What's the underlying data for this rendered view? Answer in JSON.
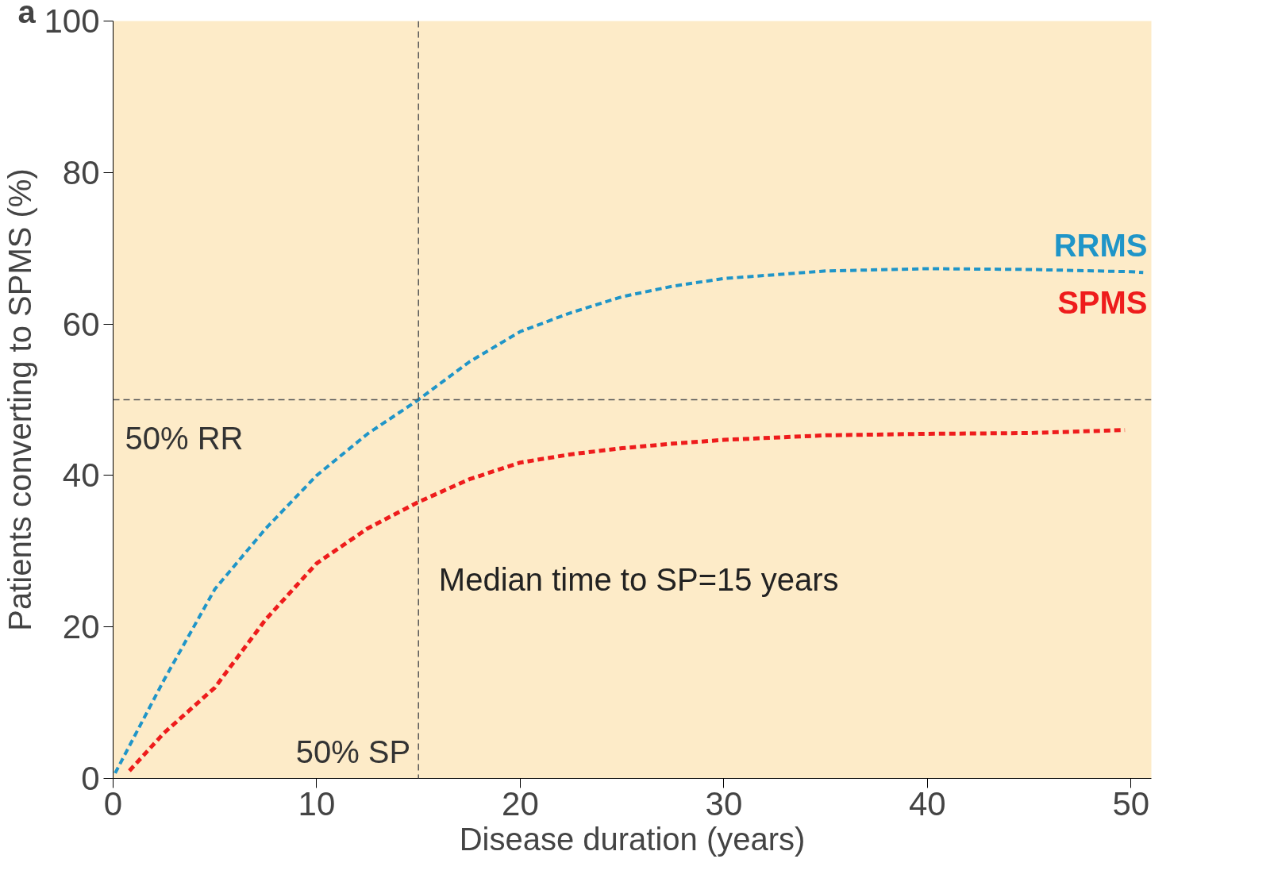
{
  "chart_data": {
    "type": "line",
    "xlabel": "Disease duration (years)",
    "ylabel": "Patients converting to SPMS (%)",
    "xlim": [
      0,
      51
    ],
    "ylim": [
      0,
      100
    ],
    "xticks": [
      0,
      10,
      20,
      30,
      40,
      50
    ],
    "yticks": [
      0,
      20,
      40,
      60,
      80,
      100
    ],
    "grid": false,
    "legend": false,
    "line_style": "dashed",
    "marker": "none",
    "series": [
      {
        "name": "RRMS",
        "color": "#1f95c8",
        "x": [
          0.1,
          2.5,
          5,
          7.5,
          10,
          12.5,
          15,
          17.5,
          20,
          22.5,
          25,
          27.5,
          30,
          35,
          40,
          45,
          50,
          50.6
        ],
        "values": [
          0.7,
          13,
          25,
          33,
          40,
          45.5,
          50,
          55,
          59,
          61.5,
          63.6,
          65,
          66,
          67,
          67.3,
          67.2,
          66.9,
          66.8
        ]
      },
      {
        "name": "SPMS",
        "color": "#ee1c1c",
        "x": [
          0.8,
          2.5,
          5,
          7.5,
          10,
          12.5,
          15,
          17.5,
          20,
          22.5,
          25,
          27.5,
          30,
          35,
          40,
          45,
          49.7
        ],
        "values": [
          1,
          6,
          12,
          21,
          28.4,
          33,
          36.5,
          39.5,
          41.7,
          42.8,
          43.6,
          44.2,
          44.7,
          45.3,
          45.5,
          45.6,
          46
        ]
      }
    ],
    "ref_lines": [
      {
        "axis": "y",
        "value": 50,
        "label": "50% RR",
        "color": "#555555",
        "line_style": "dashed"
      },
      {
        "axis": "x",
        "value": 15,
        "label": "50% SP",
        "color": "#555555",
        "line_style": "dashed"
      }
    ],
    "annotations": [
      "a",
      "Median time to SP=15 years"
    ]
  }
}
